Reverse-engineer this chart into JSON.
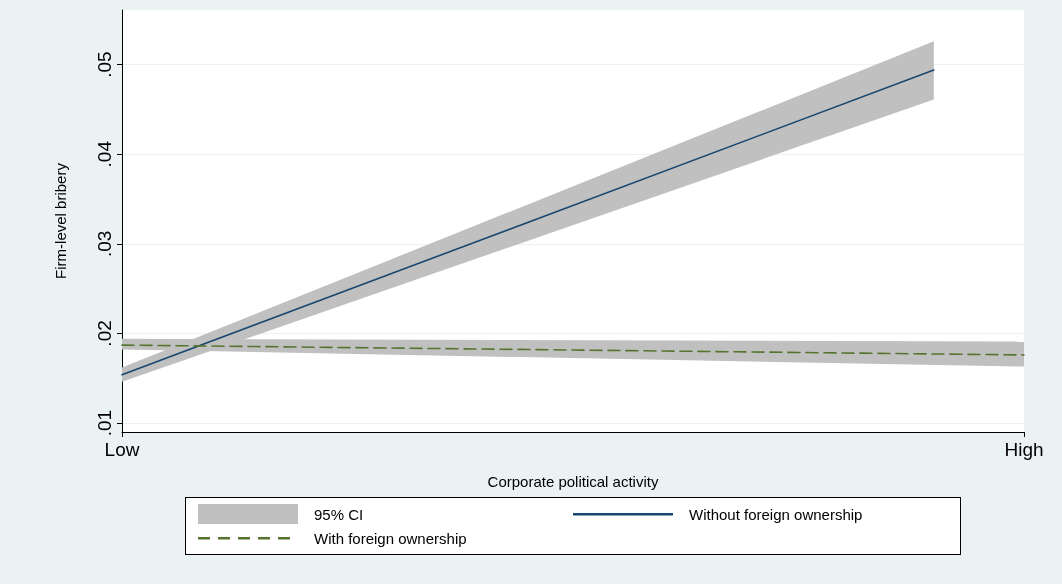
{
  "chart_data": {
    "type": "line",
    "xlabel": "Corporate political activity",
    "ylabel": "Firm-level bribery",
    "annotations": [
      "95% CI"
    ],
    "categories": [
      "Low",
      null,
      null,
      null,
      null,
      null,
      null,
      null,
      null,
      null,
      "High"
    ],
    "ylim": [
      0.009,
      0.0561
    ],
    "yticks": [
      {
        "value": 0.01,
        "label": ".01"
      },
      {
        "value": 0.02,
        "label": ".02"
      },
      {
        "value": 0.03,
        "label": ".03"
      },
      {
        "value": 0.04,
        "label": ".04"
      },
      {
        "value": 0.05,
        "label": ".05"
      }
    ],
    "grid": "y",
    "legend": "bottom",
    "marker": "none",
    "series": [
      {
        "name": "Without foreign ownership",
        "color": "#1a476f",
        "line_style": "solid",
        "values": [
          0.0154,
          null,
          null,
          null,
          null,
          null,
          null,
          null,
          null,
          0.0494,
          null
        ],
        "lower": [
          0.0146,
          null,
          null,
          null,
          null,
          null,
          null,
          null,
          null,
          0.0461,
          null
        ],
        "upper": [
          0.0162,
          null,
          null,
          null,
          null,
          null,
          null,
          null,
          null,
          0.0526,
          null
        ]
      },
      {
        "name": "With foreign ownership",
        "color": "#55752f",
        "line_style": "dashed",
        "values": [
          0.0187,
          null,
          null,
          null,
          null,
          null,
          null,
          null,
          null,
          null,
          0.0176
        ],
        "lower": [
          0.0182,
          null,
          null,
          null,
          null,
          null,
          null,
          null,
          null,
          null,
          0.0163
        ],
        "upper": [
          0.0194,
          null,
          null,
          null,
          null,
          null,
          null,
          null,
          null,
          null,
          0.0191
        ]
      }
    ]
  }
}
